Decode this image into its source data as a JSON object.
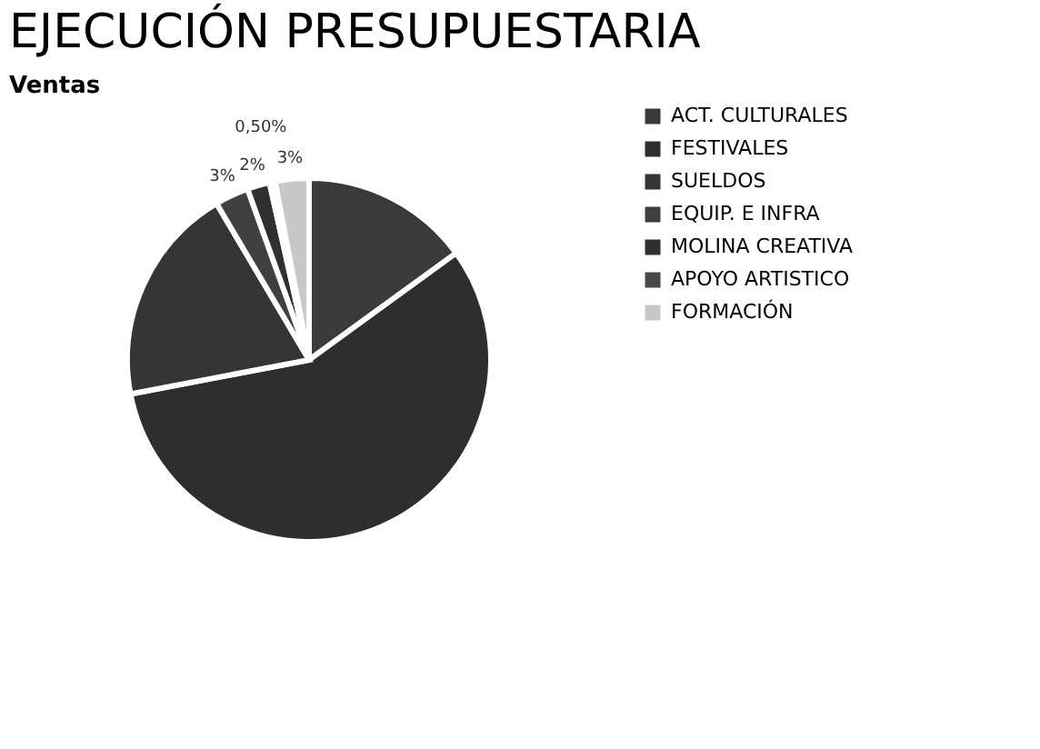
{
  "chart_data": {
    "type": "pie",
    "title": "EJECUCIÓN PRESUPUESTARIA",
    "subtitle": "Ventas",
    "categories": [
      "ACT. CULTURALES",
      "FESTIVALES",
      "SUELDOS",
      "EQUIP. E INFRA",
      "MOLINA CREATIVA",
      "APOYO ARTISTICO",
      "FORMACIÓN"
    ],
    "values": [
      15,
      57,
      19.5,
      3,
      2,
      0.5,
      3
    ],
    "value_labels": [
      null,
      null,
      null,
      "3%",
      "2%",
      "0,50%",
      "3%"
    ],
    "colors": [
      "#3a3a3a",
      "#2e2e2e",
      "#353535",
      "#404040",
      "#303030",
      "#484848",
      "#c8c8c8"
    ],
    "legend": "right"
  }
}
